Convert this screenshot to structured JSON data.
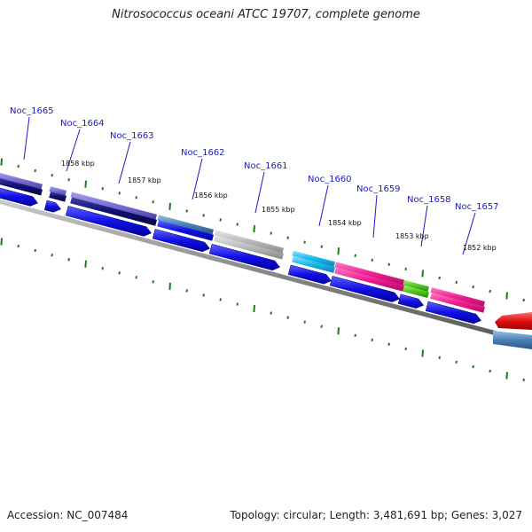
{
  "title": "Nitrosococcus oceani ATCC 19707, complete genome",
  "footer": {
    "accession": "Accession: NC_007484",
    "summary": "Topology: circular; Length: 3,481,691 bp; Genes: 3,027"
  },
  "gene_labels": [
    "Noc_1665",
    "Noc_1664",
    "Noc_1663",
    "Noc_1662",
    "Noc_1661",
    "Noc_1660",
    "Noc_1659",
    "Noc_1658",
    "Noc_1657"
  ],
  "kbp_labels": [
    "1858 kbp",
    "1857 kbp",
    "1856 kbp",
    "1855 kbp",
    "1854 kbp",
    "1853 kbp",
    "1852 kbp"
  ],
  "colors": {
    "label": "#1a1acc",
    "tick": "#1f7a1f",
    "backbone": "#777777",
    "cds_arrow": "#1010e6",
    "gene_purple": "#7b6fd6",
    "gene_navy": "#101070",
    "gene_steelblue": "#4a7fb5",
    "gene_gray": "#b8b8b8",
    "gene_cyan": "#18b8e8",
    "gene_magenta": "#ef2090",
    "gene_green": "#4cc41c",
    "gene_red": "#e01010"
  }
}
